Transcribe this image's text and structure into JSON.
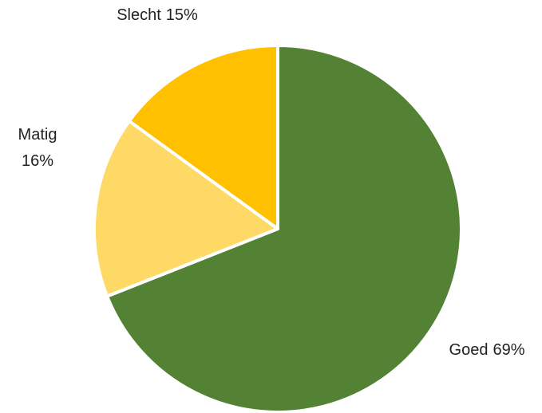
{
  "chart_data": {
    "type": "pie",
    "categories": [
      "Goed",
      "Matig",
      "Slecht"
    ],
    "values": [
      69,
      16,
      15
    ],
    "value_labels": [
      "69%",
      "16%",
      "15%"
    ],
    "colors": [
      "#548235",
      "#ffd966",
      "#ffc000"
    ]
  }
}
